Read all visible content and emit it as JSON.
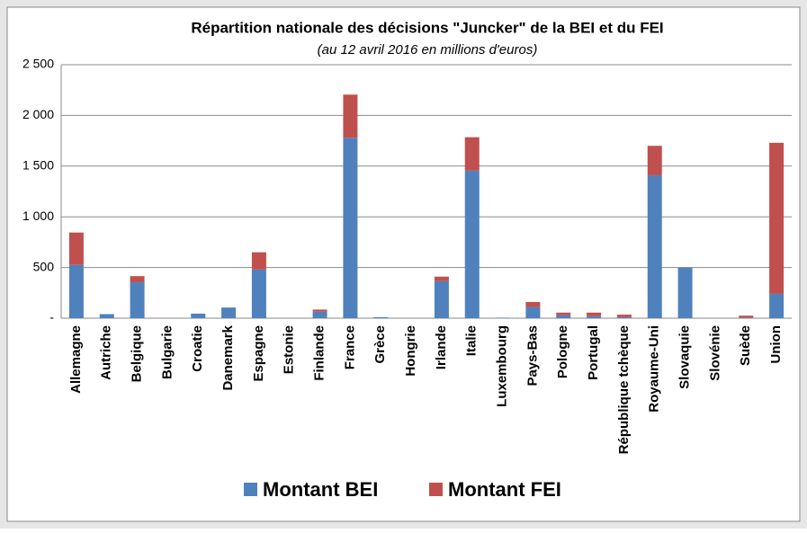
{
  "chart_data": {
    "type": "stacked_bar",
    "title": "Répartition nationale des décisions \"Juncker\" de la BEI et du FEI",
    "subtitle": "(au 12 avril 2016 en millions d'euros)",
    "categories": [
      "Allemagne",
      "Autriche",
      "Belgique",
      "Bulgarie",
      "Croatie",
      "Danemark",
      "Espagne",
      "Estonie",
      "Finlande",
      "France",
      "Grèce",
      "Hongrie",
      "Irlande",
      "Italie",
      "Luxembourg",
      "Pays-Bas",
      "Pologne",
      "Portugal",
      "République tchèque",
      "Royaume-Uni",
      "Slovaquie",
      "Slovénie",
      "Suède",
      "Union"
    ],
    "series": [
      {
        "name": "Montant BEI",
        "color": "#4f81bd",
        "values": [
          525,
          40,
          355,
          0,
          45,
          105,
          480,
          0,
          65,
          1780,
          10,
          0,
          365,
          1455,
          5,
          110,
          30,
          20,
          10,
          1410,
          500,
          0,
          5,
          240
        ]
      },
      {
        "name": "Montant FEI",
        "color": "#c0504d",
        "values": [
          320,
          0,
          60,
          0,
          0,
          0,
          170,
          0,
          20,
          425,
          0,
          0,
          45,
          330,
          0,
          50,
          25,
          35,
          25,
          290,
          0,
          0,
          20,
          1490
        ]
      }
    ],
    "ylim": [
      0,
      2500
    ],
    "yticks": [
      {
        "value": 0,
        "label": "-"
      },
      500,
      {
        "value": 1000,
        "label": "1 000"
      },
      {
        "value": 1500,
        "label": "1 500"
      },
      {
        "value": 2000,
        "label": "2 000"
      },
      {
        "value": 2500,
        "label": "2 500"
      }
    ],
    "grid": true,
    "legend": "bottom"
  }
}
